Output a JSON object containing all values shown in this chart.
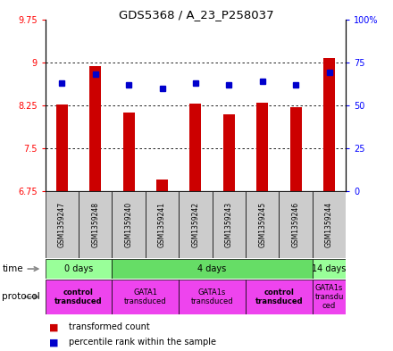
{
  "title": "GDS5368 / A_23_P258037",
  "samples": [
    "GSM1359247",
    "GSM1359248",
    "GSM1359240",
    "GSM1359241",
    "GSM1359242",
    "GSM1359243",
    "GSM1359245",
    "GSM1359246",
    "GSM1359244"
  ],
  "transformed_counts": [
    8.27,
    8.93,
    8.13,
    6.95,
    8.28,
    8.1,
    8.3,
    8.22,
    9.08
  ],
  "percentile_ranks": [
    63,
    68,
    62,
    60,
    63,
    62,
    64,
    62,
    69
  ],
  "y_min": 6.75,
  "y_max": 9.75,
  "y_ticks": [
    6.75,
    7.5,
    8.25,
    9.0,
    9.75
  ],
  "y_tick_labels": [
    "6.75",
    "7.5",
    "8.25",
    "9",
    "9.75"
  ],
  "y2_ticks": [
    0,
    25,
    50,
    75,
    100
  ],
  "y2_tick_labels": [
    "0",
    "25",
    "50",
    "75",
    "100%"
  ],
  "bar_color": "#cc0000",
  "dot_color": "#0000cc",
  "time_groups": [
    {
      "label": "0 days",
      "start": 0,
      "end": 2,
      "color": "#99ff99"
    },
    {
      "label": "4 days",
      "start": 2,
      "end": 8,
      "color": "#66dd66"
    },
    {
      "label": "14 days",
      "start": 8,
      "end": 9,
      "color": "#99ff99"
    }
  ],
  "protocol_groups": [
    {
      "label": "control\ntransduced",
      "start": 0,
      "end": 2,
      "color": "#ee44ee",
      "bold": true
    },
    {
      "label": "GATA1\ntransduced",
      "start": 2,
      "end": 4,
      "color": "#ee44ee",
      "bold": false
    },
    {
      "label": "GATA1s\ntransduced",
      "start": 4,
      "end": 6,
      "color": "#ee44ee",
      "bold": false
    },
    {
      "label": "control\ntransduced",
      "start": 6,
      "end": 8,
      "color": "#ee44ee",
      "bold": true
    },
    {
      "label": "GATA1s\ntransdu\nced",
      "start": 8,
      "end": 9,
      "color": "#ee44ee",
      "bold": false
    }
  ],
  "sample_bg_color": "#cccccc",
  "bar_width": 0.35
}
